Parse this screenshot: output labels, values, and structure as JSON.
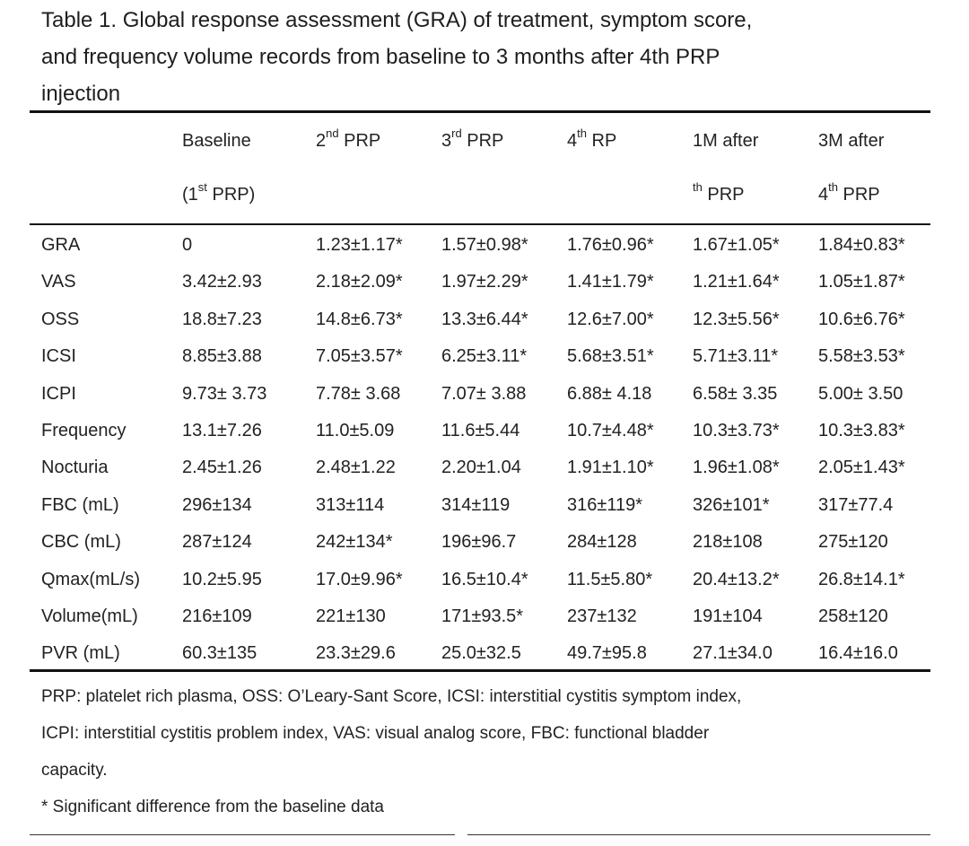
{
  "caption": {
    "lines": [
      "Table 1. Global response assessment (GRA) of treatment, symptom score,",
      "and frequency volume records from baseline to 3 months after 4th PRP",
      "injection"
    ]
  },
  "header": {
    "line1": [
      {
        "base": "Baseline",
        "sup": "",
        "after": ""
      },
      {
        "base": "2",
        "sup": "nd",
        "after": " PRP"
      },
      {
        "base": "3",
        "sup": "rd",
        "after": " PRP"
      },
      {
        "base": "4",
        "sup": "th",
        "after": " RP"
      },
      {
        "base": "1M after",
        "sup": "",
        "after": ""
      },
      {
        "base": "3M after",
        "sup": "",
        "after": ""
      }
    ],
    "line2": [
      {
        "base": "(1",
        "sup": "st",
        "after": " PRP)"
      },
      {
        "base": "",
        "sup": "",
        "after": ""
      },
      {
        "base": "",
        "sup": "",
        "after": ""
      },
      {
        "base": "",
        "sup": "",
        "after": ""
      },
      {
        "base": "",
        "sup": "th",
        "after": " PRP"
      },
      {
        "base": "4",
        "sup": "th",
        "after": " PRP"
      }
    ]
  },
  "rows": [
    {
      "label": "GRA",
      "values": [
        "0",
        "1.23±1.17*",
        "1.57±0.98*",
        "1.76±0.96*",
        "1.67±1.05*",
        "1.84±0.83*"
      ]
    },
    {
      "label": "VAS",
      "values": [
        "3.42±2.93",
        "2.18±2.09*",
        "1.97±2.29*",
        "1.41±1.79*",
        "1.21±1.64*",
        "1.05±1.87*"
      ]
    },
    {
      "label": "OSS",
      "values": [
        "18.8±7.23",
        "14.8±6.73*",
        "13.3±6.44*",
        "12.6±7.00*",
        "12.3±5.56*",
        "10.6±6.76*"
      ]
    },
    {
      "label": "ICSI",
      "values": [
        "8.85±3.88",
        "7.05±3.57*",
        "6.25±3.11*",
        "5.68±3.51*",
        "5.71±3.11*",
        "5.58±3.53*"
      ]
    },
    {
      "label": "ICPI",
      "values": [
        "9.73± 3.73",
        "7.78± 3.68",
        "7.07± 3.88",
        "6.88± 4.18",
        "6.58± 3.35",
        "5.00± 3.50"
      ]
    },
    {
      "label": "Frequency",
      "values": [
        "13.1±7.26",
        "11.0±5.09",
        "11.6±5.44",
        "10.7±4.48*",
        "10.3±3.73*",
        "10.3±3.83*"
      ]
    },
    {
      "label": "Nocturia",
      "values": [
        "2.45±1.26",
        "2.48±1.22",
        "2.20±1.04",
        "1.91±1.10*",
        "1.96±1.08*",
        "2.05±1.43*"
      ]
    },
    {
      "label": "FBC (mL)",
      "values": [
        "296±134",
        "313±114",
        "314±119",
        "316±119*",
        "326±101*",
        "317±77.4"
      ]
    },
    {
      "label": "CBC (mL)",
      "values": [
        "287±124",
        "242±134*",
        "196±96.7",
        "284±128",
        "218±108",
        "275±120"
      ]
    },
    {
      "label": "Qmax(mL/s)",
      "values": [
        "10.2±5.95",
        "17.0±9.96*",
        "16.5±10.4*",
        "11.5±5.80*",
        "20.4±13.2*",
        "26.8±14.1*"
      ]
    },
    {
      "label": "Volume(mL)",
      "values": [
        "216±109",
        "221±130",
        "171±93.5*",
        "237±132",
        "191±104",
        "258±120"
      ]
    },
    {
      "label": "PVR (mL)",
      "values": [
        "60.3±135",
        "23.3±29.6",
        "25.0±32.5",
        "49.7±95.8",
        "27.1±34.0",
        "16.4±16.0"
      ]
    }
  ],
  "notes": {
    "abbreviation_lines": [
      "PRP: platelet rich plasma, OSS: O’Leary-Sant Score, ICSI: interstitial cystitis symptom index,",
      "ICPI: interstitial cystitis problem index, VAS: visual analog score, FBC: functional bladder",
      "capacity."
    ],
    "significance": "* Significant difference from the baseline data"
  }
}
